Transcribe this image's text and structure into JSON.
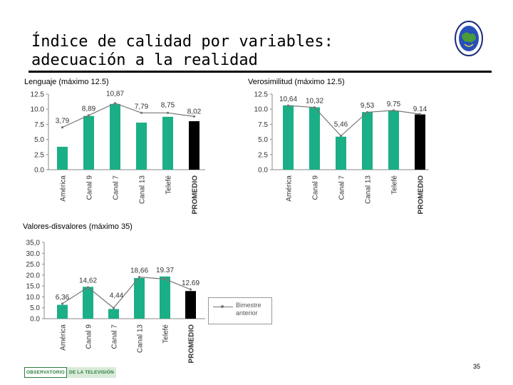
{
  "title": {
    "line1": "Índice de calidad por variables:",
    "line2": "adecuación a la realidad"
  },
  "charts": {
    "lenguaje": {
      "label": "Lenguaje (máximo 12.5)"
    },
    "verosimilitud": {
      "label": "Verosimilitud (máximo 12.5)"
    },
    "valores": {
      "label": "Valores-disvalores (máximo 35)"
    }
  },
  "legend": {
    "label": "Bimestre anterior"
  },
  "footer": {
    "logo_left": "OBSERVATORIO",
    "logo_right": "DE LA TELEVISIÓN",
    "page_number": "35"
  },
  "icons": {
    "top_logo": "globe-seal-icon"
  },
  "colors": {
    "bar": "#1aaf86",
    "promedio": "#000000",
    "line": "#777777"
  },
  "chart_data": [
    {
      "type": "bar",
      "categories": [
        "América",
        "Canal 9",
        "Canal 7",
        "Canal 13",
        "Telefé",
        "PROMEDIO"
      ],
      "values": [
        3.79,
        8.89,
        10.87,
        7.79,
        8.75,
        8.02
      ],
      "value_labels": [
        "3,79",
        "8,89",
        "10,87",
        "7,79",
        "8,75",
        "8,02"
      ],
      "previous": [
        7.0,
        9.0,
        11.0,
        9.4,
        9.4,
        8.8
      ],
      "ylim": [
        0,
        12.5
      ],
      "yticks": [
        "0.0",
        "2.5",
        "5.0",
        "7.5",
        "10.0",
        "12.5"
      ]
    },
    {
      "type": "bar",
      "categories": [
        "América",
        "Canal 9",
        "Canal 7",
        "Canal 13",
        "Telefé",
        "PROMEDIO"
      ],
      "values": [
        10.64,
        10.32,
        5.46,
        9.53,
        9.75,
        9.14
      ],
      "value_labels": [
        "10,64",
        "10,32",
        "5,46",
        "9,53",
        "9.75",
        "9.14"
      ],
      "previous": [
        10.6,
        10.3,
        5.6,
        9.5,
        9.8,
        9.2
      ],
      "ylim": [
        0,
        12.5
      ],
      "yticks": [
        "0.0",
        "2.5",
        "5.0",
        "7.5",
        "10.0",
        "12.5"
      ]
    },
    {
      "type": "bar",
      "categories": [
        "América",
        "Canal 9",
        "Canal 7",
        "Canal 13",
        "Telefé",
        "PROMEDIO"
      ],
      "values": [
        6.36,
        14.62,
        4.44,
        18.66,
        19.37,
        12.69
      ],
      "value_labels": [
        "6,36",
        "14,62",
        "4,44",
        "18,66",
        "19.37",
        "12.69"
      ],
      "previous": [
        6.9,
        14.4,
        4.9,
        19.1,
        18.2,
        13.4
      ],
      "ylim": [
        0,
        35
      ],
      "yticks": [
        "0.0",
        "5.0",
        "10.0",
        "15.0",
        "20.0",
        "25.0",
        "30.0",
        "35,0"
      ]
    }
  ]
}
